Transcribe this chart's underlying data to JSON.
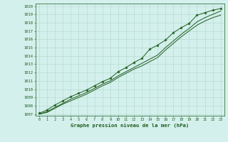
{
  "xlabel": "Graphe pression niveau de la mer (hPa)",
  "xlim": [
    -0.5,
    23.5
  ],
  "ylim": [
    1006.8,
    1020.3
  ],
  "yticks": [
    1007,
    1008,
    1009,
    1010,
    1011,
    1012,
    1013,
    1014,
    1015,
    1016,
    1017,
    1018,
    1019,
    1020
  ],
  "xticks": [
    0,
    1,
    2,
    3,
    4,
    5,
    6,
    7,
    8,
    9,
    10,
    11,
    12,
    13,
    14,
    15,
    16,
    17,
    18,
    19,
    20,
    21,
    22,
    23
  ],
  "background_color": "#d4f0ec",
  "grid_color": "#b0d8cc",
  "line_color": "#1e5c1e",
  "line1_y": [
    1007.1,
    1007.5,
    1008.1,
    1008.6,
    1009.1,
    1009.5,
    1009.9,
    1010.4,
    1010.9,
    1011.3,
    1012.1,
    1012.6,
    1013.2,
    1013.7,
    1014.8,
    1015.3,
    1015.9,
    1016.8,
    1017.4,
    1017.9,
    1018.9,
    1019.2,
    1019.5,
    1019.7
  ],
  "line2_y": [
    1007.0,
    1007.3,
    1007.8,
    1008.3,
    1008.8,
    1009.2,
    1009.6,
    1010.1,
    1010.6,
    1011.0,
    1011.6,
    1012.1,
    1012.6,
    1013.1,
    1013.6,
    1014.1,
    1015.0,
    1015.8,
    1016.6,
    1017.3,
    1018.1,
    1018.6,
    1019.0,
    1019.4
  ],
  "line3_y": [
    1007.0,
    1007.2,
    1007.7,
    1008.2,
    1008.6,
    1009.0,
    1009.4,
    1009.9,
    1010.4,
    1010.8,
    1011.4,
    1011.9,
    1012.4,
    1012.8,
    1013.3,
    1013.8,
    1014.7,
    1015.5,
    1016.3,
    1017.0,
    1017.7,
    1018.2,
    1018.6,
    1018.9
  ]
}
